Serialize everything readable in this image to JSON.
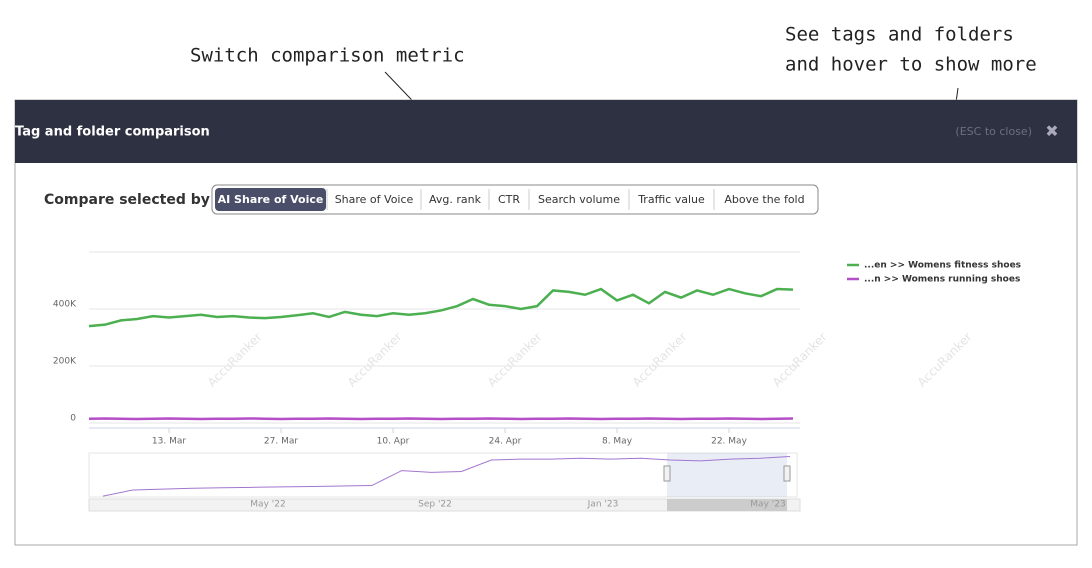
{
  "annotations": {
    "metric": "Switch comparison metric",
    "tags_line1": "See tags and folders",
    "tags_line2": "and hover to show more"
  },
  "modal": {
    "title": "Tag and folder comparison",
    "close_hint": "(ESC to close)",
    "close_icon": "✖"
  },
  "compare": {
    "label": "Compare selected by",
    "active": 0,
    "buttons": [
      "AI Share of Voice",
      "Share of Voice",
      "Avg. rank",
      "CTR",
      "Search volume",
      "Traffic value",
      "Above the fold"
    ]
  },
  "chart": {
    "type": "line",
    "watermark": "AccuRanker",
    "categories": [
      null,
      null,
      null,
      null,
      null,
      "13. Mar",
      null,
      null,
      null,
      null,
      null,
      null,
      "27. Mar",
      null,
      null,
      null,
      null,
      null,
      null,
      "10. Apr",
      null,
      null,
      null,
      null,
      null,
      null,
      "24. Apr",
      null,
      null,
      null,
      null,
      null,
      null,
      "8. May",
      null,
      null,
      null,
      null,
      null,
      null,
      "22. May",
      null,
      null,
      null,
      null
    ],
    "ylim": [
      0,
      600000
    ],
    "yticks": [
      0,
      {
        "value": 200000,
        "label": "200K"
      },
      {
        "value": 400000,
        "label": "400K"
      }
    ],
    "series": [
      {
        "name": "...en >> Womens fitness shoes",
        "color": "#4caf50",
        "values": [
          340000,
          345000,
          360000,
          365000,
          375000,
          370000,
          375000,
          380000,
          372000,
          375000,
          370000,
          368000,
          372000,
          378000,
          385000,
          372000,
          390000,
          380000,
          375000,
          385000,
          380000,
          385000,
          395000,
          410000,
          435000,
          415000,
          410000,
          400000,
          410000,
          465000,
          460000,
          450000,
          470000,
          430000,
          450000,
          420000,
          460000,
          440000,
          465000,
          450000,
          470000,
          455000,
          445000,
          470000,
          468000
        ]
      },
      {
        "name": "...n >> Womens running shoes",
        "color": "#b44fc8",
        "values": [
          15000,
          16000,
          15000,
          14000,
          15000,
          16000,
          15000,
          14000,
          15000,
          15000,
          16000,
          15000,
          14000,
          15000,
          15000,
          16000,
          15000,
          14000,
          15000,
          15000,
          16000,
          15000,
          14000,
          15000,
          15000,
          16000,
          15000,
          14000,
          15000,
          15000,
          16000,
          15000,
          14000,
          15000,
          15000,
          16000,
          15000,
          14000,
          15000,
          15000,
          16000,
          15000,
          14000,
          15000,
          16000
        ]
      }
    ],
    "navigator": {
      "color": "#a276d0",
      "ylim": [
        0,
        500000
      ],
      "labels": [
        "May '22",
        "Sep '22",
        "Jan '23",
        "May '23"
      ],
      "values": [
        10000,
        80000,
        90000,
        100000,
        105000,
        110000,
        115000,
        120000,
        125000,
        130000,
        300000,
        280000,
        290000,
        420000,
        430000,
        430000,
        440000,
        430000,
        440000,
        420000,
        410000,
        430000,
        440000,
        460000
      ]
    }
  }
}
